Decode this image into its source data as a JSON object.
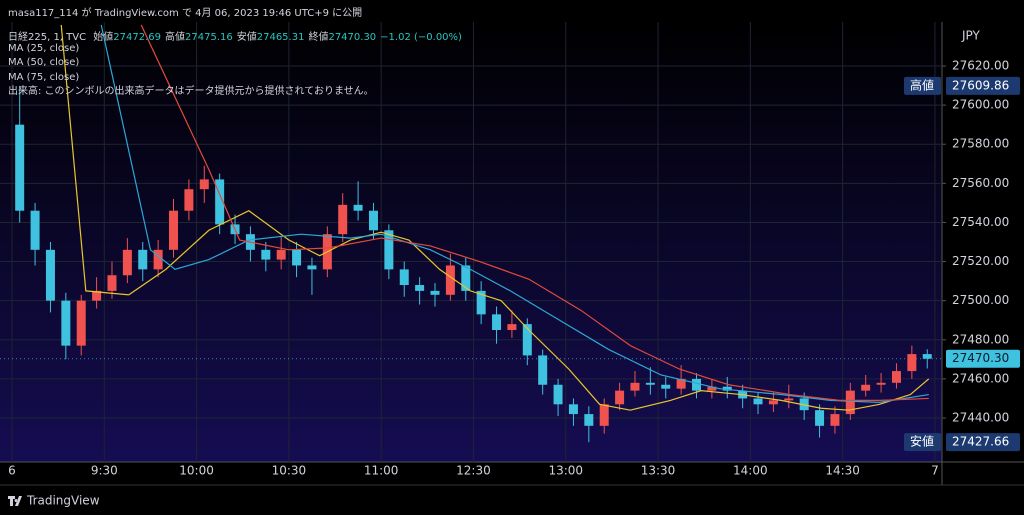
{
  "header": {
    "published": "masa117_114 が TradingView.com で 4月 06, 2023 19:46 UTC+9 に公開",
    "symbol": "日経225, 1, TVC",
    "ohlc": [
      {
        "label": "始値",
        "value": "27472.69"
      },
      {
        "label": "高値",
        "value": "27475.16"
      },
      {
        "label": "安値",
        "value": "27465.31"
      },
      {
        "label": "終値",
        "value": "27470.30"
      }
    ],
    "change": "−1.02 (−0.00%)",
    "volume_note": "出来高: このシンボルの出来高データはデータ提供元から提供されておりません。"
  },
  "footer": "TradingView",
  "chart_data": {
    "type": "candlestick",
    "currency": "JPY",
    "up_color": "#f0524f",
    "down_color": "#3fc1e0",
    "grid": true,
    "xlim": [
      -1.3,
      302.3
    ],
    "ylim": [
      27417.5,
      27642.5
    ],
    "xticks": [
      {
        "value": 0,
        "label": "6"
      },
      {
        "value": 30,
        "label": "9:30"
      },
      {
        "value": 60,
        "label": "10:00"
      },
      {
        "value": 90,
        "label": "10:30"
      },
      {
        "value": 120,
        "label": "11:00"
      },
      {
        "value": 150,
        "label": "12:30"
      },
      {
        "value": 180,
        "label": "13:00"
      },
      {
        "value": 210,
        "label": "13:30"
      },
      {
        "value": 240,
        "label": "14:00"
      },
      {
        "value": 270,
        "label": "14:30"
      },
      {
        "value": 300,
        "label": "7"
      }
    ],
    "yticks": [
      {
        "value": 27440,
        "label": "27440.00"
      },
      {
        "value": 27460,
        "label": "27460.00"
      },
      {
        "value": 27480,
        "label": "27480.00"
      },
      {
        "value": 27500,
        "label": "27500.00"
      },
      {
        "value": 27520,
        "label": "27520.00"
      },
      {
        "value": 27540,
        "label": "27540.00"
      },
      {
        "value": 27560,
        "label": "27560.00"
      },
      {
        "value": 27580,
        "label": "27580.00"
      },
      {
        "value": 27600,
        "label": "27600.00"
      },
      {
        "value": 27620,
        "label": "27620.00"
      }
    ],
    "x": [
      2.5,
      7.5,
      12.5,
      17.5,
      22.5,
      27.5,
      32.5,
      37.5,
      42.5,
      47.5,
      52.5,
      57.5,
      62.5,
      67.5,
      72.5,
      77.5,
      82.5,
      87.5,
      92.5,
      97.5,
      102.5,
      107.5,
      112.5,
      117.5,
      122.5,
      127.5,
      132.5,
      137.5,
      142.5,
      147.5,
      152.5,
      157.5,
      162.5,
      167.5,
      172.5,
      177.5,
      182.5,
      187.5,
      192.5,
      197.5,
      202.5,
      207.5,
      212.5,
      217.5,
      222.5,
      227.5,
      232.5,
      237.5,
      242.5,
      247.5,
      252.5,
      257.5,
      262.5,
      267.5,
      272.5,
      277.5,
      282.5,
      287.5,
      292.5,
      297.5
    ],
    "open": [
      27590,
      27546,
      27526,
      27500,
      27477,
      27500,
      27505,
      27513,
      27526,
      27516,
      27526,
      27546,
      27557,
      27562,
      27539,
      27534,
      27526,
      27521,
      27526,
      27518,
      27516,
      27534,
      27549,
      27546,
      27536,
      27516,
      27508,
      27505,
      27503,
      27518,
      27505,
      27493,
      27485,
      27488,
      27472,
      27457,
      27447,
      27442,
      27436,
      27447,
      27454,
      27458,
      27457,
      27455,
      27460,
      27454,
      27456,
      27454,
      27450,
      27447,
      27449,
      27450,
      27444,
      27436,
      27442,
      27454,
      27457,
      27458,
      27464,
      27472.69
    ],
    "high": [
      27609.86,
      27550,
      27530,
      27504,
      27503,
      27512,
      27520,
      27532,
      27530,
      27531,
      27552,
      27562,
      27569,
      27565,
      27544,
      27538,
      27530,
      27533,
      27530,
      27522,
      27538,
      27555,
      27561,
      27550,
      27539,
      27520,
      27512,
      27509,
      27524,
      27522,
      27510,
      27497,
      27495,
      27491,
      27475,
      27460,
      27450,
      27446,
      27450,
      27458,
      27464,
      27466,
      27461,
      27467,
      27463,
      27460,
      27461,
      27457,
      27453,
      27453,
      27457,
      27453,
      27447,
      27446,
      27458,
      27462,
      27463,
      27468,
      27477,
      27475.16
    ],
    "low": [
      27540,
      27518,
      27494,
      27470,
      27472,
      27496,
      27501,
      27509,
      27510,
      27512,
      27522,
      27541,
      27550,
      27534,
      27529,
      27520,
      27515,
      27516,
      27512,
      27503,
      27512,
      27530,
      27541,
      27531,
      27511,
      27502,
      27498,
      27497,
      27500,
      27500,
      27488,
      27478,
      27481,
      27467,
      27452,
      27441,
      27436,
      27427.66,
      27432,
      27444,
      27451,
      27452,
      27450,
      27452,
      27450,
      27450,
      27450,
      27445,
      27442,
      27443,
      27445,
      27439,
      27430,
      27432,
      27439,
      27451,
      27453,
      27455,
      27460,
      27465.31
    ],
    "close": [
      27546,
      27526,
      27500,
      27477,
      27500,
      27505,
      27513,
      27526,
      27516,
      27526,
      27546,
      27557,
      27562,
      27539,
      27534,
      27526,
      27521,
      27526,
      27518,
      27516,
      27534,
      27549,
      27546,
      27536,
      27516,
      27508,
      27505,
      27503,
      27518,
      27505,
      27493,
      27485,
      27488,
      27472,
      27457,
      27447,
      27442,
      27436,
      27447,
      27454,
      27458,
      27457,
      27455,
      27460,
      27454,
      27456,
      27454,
      27450,
      27447,
      27449,
      27450,
      27444,
      27436,
      27442,
      27454,
      27457,
      27458,
      27464,
      27472.69,
      27470.3
    ],
    "series": [
      {
        "name": "MA (25, close)",
        "color": "#e9c62c",
        "x": [
          16,
          24,
          38,
          50,
          64,
          77,
          90,
          100,
          110,
          120,
          129,
          139,
          149,
          159,
          168,
          181,
          191,
          201,
          214,
          224,
          237,
          250,
          263,
          272,
          282,
          292,
          298
        ],
        "values": [
          27641,
          27505,
          27503,
          27516,
          27536,
          27546,
          27531,
          27523,
          27531,
          27535,
          27531,
          27516,
          27505,
          27500,
          27485,
          27465,
          27447,
          27444,
          27449,
          27454,
          27452,
          27449,
          27445,
          27444,
          27447,
          27452,
          27460
        ]
      },
      {
        "name": "MA (50, close)",
        "color": "#2ba9d6",
        "x": [
          29,
          45,
          53,
          64,
          77,
          94,
          110,
          120,
          136,
          149,
          162,
          178,
          194,
          211,
          230,
          250,
          266,
          282,
          298
        ],
        "values": [
          27641,
          27526,
          27516,
          27521,
          27531,
          27534,
          27532,
          27534,
          27526,
          27516,
          27505,
          27490,
          27475,
          27462,
          27455,
          27452,
          27449,
          27448,
          27452
        ]
      },
      {
        "name": "MA (75, close)",
        "color": "#e24a3c",
        "x": [
          42,
          64,
          74,
          90,
          103,
          120,
          136,
          152,
          168,
          185,
          201,
          217,
          233,
          253,
          269,
          282,
          298
        ],
        "values": [
          27641,
          27567,
          27531,
          27526,
          27527,
          27532,
          27528,
          27520,
          27511,
          27495,
          27477,
          27465,
          27457,
          27452,
          27449,
          27449,
          27450
        ]
      }
    ],
    "last_price": {
      "value": 27470.3,
      "label": "27470.30"
    },
    "price_markers": [
      {
        "name": "高値",
        "value": 27609.86,
        "label": "27609.86"
      },
      {
        "name": "安値",
        "value": 27427.66,
        "label": "27427.66"
      }
    ]
  }
}
